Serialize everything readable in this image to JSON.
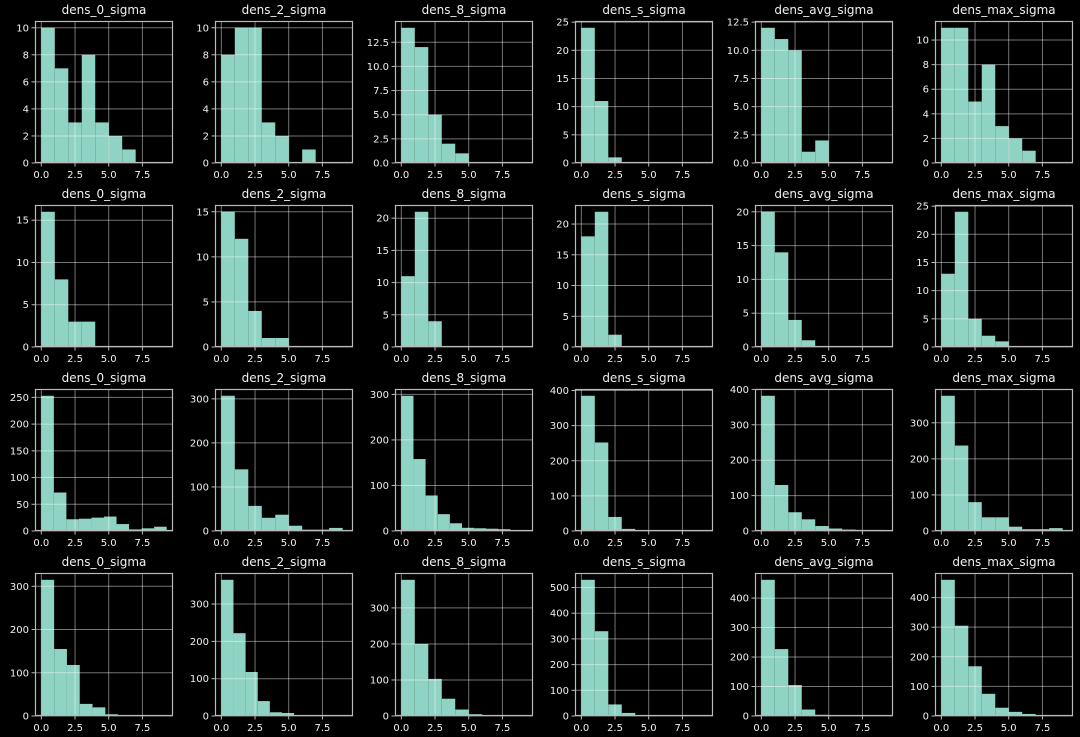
{
  "figure": {
    "background_color": "#000000",
    "bar_color": "#8ed3c3",
    "grid_color": "#ffffff",
    "grid_opacity": 0.45,
    "spine_color": "#b9b9b9",
    "text_color": "#f0f0f0",
    "rows": 4,
    "cols": 6
  },
  "axes": {
    "x_tick_labels": [
      "0.0",
      "2.5",
      "5.0",
      "7.5"
    ],
    "x_tick_values": [
      0,
      2.5,
      5.0,
      7.5
    ],
    "xlim": [
      -0.47,
      9.77
    ],
    "grid": true
  },
  "chart_data": [
    {
      "type": "bar",
      "subtype": "histogram",
      "row": 1,
      "col": 1,
      "title": "dens_0_sigma",
      "bin_start": 0,
      "bin_width": 1.0,
      "values": [
        10,
        7,
        3,
        8,
        3,
        2,
        1
      ],
      "y_tick_labels": [
        "0",
        "2",
        "4",
        "6",
        "8",
        "10"
      ],
      "ylabel": "",
      "xlabel": ""
    },
    {
      "type": "bar",
      "subtype": "histogram",
      "row": 1,
      "col": 2,
      "title": "dens_2_sigma",
      "bin_start": 0,
      "bin_width": 1.0,
      "values": [
        8,
        10,
        10,
        3,
        2,
        0,
        1
      ],
      "y_tick_labels": [
        "0",
        "2",
        "4",
        "6",
        "8",
        "10"
      ],
      "ylabel": "",
      "xlabel": ""
    },
    {
      "type": "bar",
      "subtype": "histogram",
      "row": 1,
      "col": 3,
      "title": "dens_8_sigma",
      "bin_start": 0,
      "bin_width": 1.0,
      "values": [
        14,
        12,
        5,
        2,
        1
      ],
      "y_tick_labels": [
        "0.0",
        "2.5",
        "5.0",
        "7.5",
        "10.0",
        "12.5"
      ],
      "ylabel": "",
      "xlabel": ""
    },
    {
      "type": "bar",
      "subtype": "histogram",
      "row": 1,
      "col": 4,
      "title": "dens_s_sigma",
      "bin_start": 0,
      "bin_width": 1.0,
      "values": [
        24,
        11,
        1
      ],
      "y_tick_labels": [
        "0",
        "5",
        "10",
        "15",
        "20",
        "25"
      ],
      "ylabel": "",
      "xlabel": ""
    },
    {
      "type": "bar",
      "subtype": "histogram",
      "row": 1,
      "col": 5,
      "title": "dens_avg_sigma",
      "bin_start": 0,
      "bin_width": 1.0,
      "values": [
        12,
        11,
        10,
        1,
        2
      ],
      "y_tick_labels": [
        "0.0",
        "2.5",
        "5.0",
        "7.5",
        "10.0",
        "12.5"
      ],
      "ylabel": "",
      "xlabel": ""
    },
    {
      "type": "bar",
      "subtype": "histogram",
      "row": 1,
      "col": 6,
      "title": "dens_max_sigma",
      "bin_start": 0,
      "bin_width": 1.0,
      "values": [
        11,
        11,
        5,
        8,
        3,
        2,
        1
      ],
      "y_tick_labels": [
        "0",
        "2",
        "4",
        "6",
        "8",
        "10"
      ],
      "ylabel": "",
      "xlabel": ""
    },
    {
      "type": "bar",
      "subtype": "histogram",
      "row": 2,
      "col": 1,
      "title": "dens_0_sigma",
      "bin_start": 0,
      "bin_width": 1.0,
      "values": [
        16,
        8,
        3,
        3
      ],
      "y_tick_labels": [
        "0",
        "5",
        "10",
        "15"
      ],
      "ylabel": "",
      "xlabel": ""
    },
    {
      "type": "bar",
      "subtype": "histogram",
      "row": 2,
      "col": 2,
      "title": "dens_2_sigma",
      "bin_start": 0,
      "bin_width": 1.0,
      "values": [
        15,
        12,
        4,
        1,
        1
      ],
      "y_tick_labels": [
        "0",
        "5",
        "10",
        "15"
      ],
      "ylabel": "",
      "xlabel": ""
    },
    {
      "type": "bar",
      "subtype": "histogram",
      "row": 2,
      "col": 3,
      "title": "dens_8_sigma",
      "bin_start": 0,
      "bin_width": 1.0,
      "values": [
        11,
        21,
        4
      ],
      "y_tick_labels": [
        "0",
        "5",
        "10",
        "15",
        "20"
      ],
      "ylabel": "",
      "xlabel": ""
    },
    {
      "type": "bar",
      "subtype": "histogram",
      "row": 2,
      "col": 4,
      "title": "dens_s_sigma",
      "bin_start": 0,
      "bin_width": 1.0,
      "values": [
        18,
        22,
        2
      ],
      "y_tick_labels": [
        "0",
        "5",
        "10",
        "15",
        "20"
      ],
      "ylabel": "",
      "xlabel": ""
    },
    {
      "type": "bar",
      "subtype": "histogram",
      "row": 2,
      "col": 5,
      "title": "dens_avg_sigma",
      "bin_start": 0,
      "bin_width": 1.0,
      "values": [
        20,
        14,
        4,
        1
      ],
      "y_tick_labels": [
        "0",
        "5",
        "10",
        "15",
        "20"
      ],
      "ylabel": "",
      "xlabel": ""
    },
    {
      "type": "bar",
      "subtype": "histogram",
      "row": 2,
      "col": 6,
      "title": "dens_max_sigma",
      "bin_start": 0,
      "bin_width": 1.0,
      "values": [
        13,
        24,
        5,
        2,
        1
      ],
      "y_tick_labels": [
        "0",
        "5",
        "10",
        "15",
        "20",
        "25"
      ],
      "ylabel": "",
      "xlabel": ""
    },
    {
      "type": "bar",
      "subtype": "histogram",
      "row": 3,
      "col": 1,
      "title": "dens_0_sigma",
      "bin_start": 0,
      "bin_width": 0.93,
      "values": [
        253,
        72,
        22,
        23,
        25,
        27,
        13,
        3,
        5,
        8
      ],
      "y_tick_labels": [
        "0",
        "50",
        "100",
        "150",
        "200",
        "250"
      ],
      "ylabel": "",
      "xlabel": ""
    },
    {
      "type": "bar",
      "subtype": "histogram",
      "row": 3,
      "col": 2,
      "title": "dens_2_sigma",
      "bin_start": 0,
      "bin_width": 1.0,
      "values": [
        307,
        140,
        57,
        30,
        37,
        12,
        3,
        3,
        7
      ],
      "y_tick_labels": [
        "0",
        "100",
        "200",
        "300"
      ],
      "ylabel": "",
      "xlabel": ""
    },
    {
      "type": "bar",
      "subtype": "histogram",
      "row": 3,
      "col": 3,
      "title": "dens_8_sigma",
      "bin_start": 0,
      "bin_width": 0.9,
      "values": [
        297,
        158,
        78,
        37,
        17,
        7,
        6,
        5,
        4
      ],
      "y_tick_labels": [
        "0",
        "100",
        "200",
        "300"
      ],
      "ylabel": "",
      "xlabel": ""
    },
    {
      "type": "bar",
      "subtype": "histogram",
      "row": 3,
      "col": 4,
      "title": "dens_s_sigma",
      "bin_start": 0,
      "bin_width": 1.0,
      "values": [
        385,
        252,
        40,
        6
      ],
      "y_tick_labels": [
        "0",
        "100",
        "200",
        "300",
        "400"
      ],
      "ylabel": "",
      "xlabel": ""
    },
    {
      "type": "bar",
      "subtype": "histogram",
      "row": 3,
      "col": 5,
      "title": "dens_avg_sigma",
      "bin_start": 0,
      "bin_width": 1.0,
      "values": [
        382,
        130,
        53,
        33,
        14,
        7,
        4,
        3,
        3
      ],
      "y_tick_labels": [
        "0",
        "100",
        "200",
        "300",
        "400"
      ],
      "ylabel": "",
      "xlabel": ""
    },
    {
      "type": "bar",
      "subtype": "histogram",
      "row": 3,
      "col": 6,
      "title": "dens_max_sigma",
      "bin_start": 0,
      "bin_width": 1.0,
      "values": [
        375,
        237,
        80,
        38,
        38,
        12,
        5,
        5,
        8
      ],
      "y_tick_labels": [
        "0",
        "100",
        "200",
        "300"
      ],
      "ylabel": "",
      "xlabel": ""
    },
    {
      "type": "bar",
      "subtype": "histogram",
      "row": 4,
      "col": 1,
      "title": "dens_0_sigma",
      "bin_start": 0,
      "bin_width": 0.95,
      "values": [
        315,
        155,
        118,
        28,
        20,
        4,
        2,
        2
      ],
      "y_tick_labels": [
        "0",
        "100",
        "200",
        "300"
      ],
      "ylabel": "",
      "xlabel": ""
    },
    {
      "type": "bar",
      "subtype": "histogram",
      "row": 4,
      "col": 2,
      "title": "dens_2_sigma",
      "bin_start": 0,
      "bin_width": 0.9,
      "values": [
        365,
        222,
        118,
        40,
        10,
        8,
        2
      ],
      "y_tick_labels": [
        "0",
        "100",
        "200",
        "300"
      ],
      "ylabel": "",
      "xlabel": ""
    },
    {
      "type": "bar",
      "subtype": "histogram",
      "row": 4,
      "col": 3,
      "title": "dens_8_sigma",
      "bin_start": 0,
      "bin_width": 1.0,
      "values": [
        378,
        200,
        103,
        48,
        18,
        5
      ],
      "y_tick_labels": [
        "0",
        "100",
        "200",
        "300"
      ],
      "ylabel": "",
      "xlabel": ""
    },
    {
      "type": "bar",
      "subtype": "histogram",
      "row": 4,
      "col": 4,
      "title": "dens_s_sigma",
      "bin_start": 0,
      "bin_width": 1.0,
      "values": [
        530,
        330,
        45,
        12
      ],
      "y_tick_labels": [
        "0",
        "100",
        "200",
        "300",
        "400",
        "500"
      ],
      "ylabel": "",
      "xlabel": ""
    },
    {
      "type": "bar",
      "subtype": "histogram",
      "row": 4,
      "col": 5,
      "title": "dens_avg_sigma",
      "bin_start": 0,
      "bin_width": 1.0,
      "values": [
        462,
        227,
        105,
        22,
        4
      ],
      "y_tick_labels": [
        "0",
        "100",
        "200",
        "300",
        "400"
      ],
      "ylabel": "",
      "xlabel": ""
    },
    {
      "type": "bar",
      "subtype": "histogram",
      "row": 4,
      "col": 6,
      "title": "dens_max_sigma",
      "bin_start": 0,
      "bin_width": 1.0,
      "values": [
        460,
        305,
        168,
        75,
        28,
        14,
        7
      ],
      "y_tick_labels": [
        "0",
        "100",
        "200",
        "300",
        "400"
      ],
      "ylabel": "",
      "xlabel": ""
    }
  ]
}
